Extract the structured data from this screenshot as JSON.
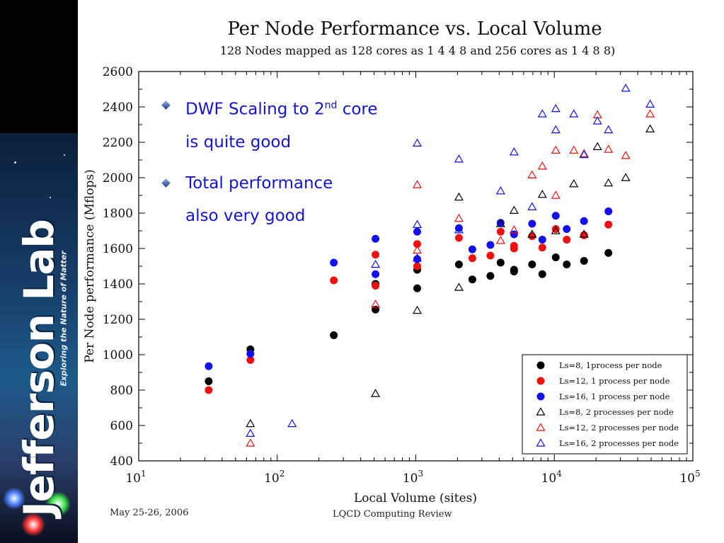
{
  "sidebar": {
    "logo_text": "Jefferson Lab",
    "tagline": "Exploring the Nature of Matter"
  },
  "bullets": [
    {
      "pre": "DWF Scaling to 2",
      "sup": "nd",
      "post": " core",
      "line2": "is quite good"
    },
    {
      "pre": "Total performance",
      "sup": "",
      "post": "",
      "line2": "also very good"
    }
  ],
  "footer": {
    "date": "May 25-26, 2006",
    "center": "LQCD Computing Review"
  },
  "colors": {
    "series_black": "#000000",
    "series_red": "#ee1111",
    "series_blue": "#1111ee",
    "bullet_text": "#1515d0"
  },
  "chart_data": {
    "type": "scatter",
    "title": "Per Node Performance vs. Local Volume",
    "subtitle": "128 Nodes mapped as 128 cores as 1 4 4 8 and 256 cores as 1 4 8 8)",
    "xlabel": "Local Volume (sites)",
    "ylabel": "Per Node performance (Mflops)",
    "xscale": "log",
    "xlim": [
      10,
      100000
    ],
    "ylim": [
      400,
      2600
    ],
    "x_ticks": [
      {
        "value": 10,
        "base": "10",
        "exp": "1"
      },
      {
        "value": 100,
        "base": "10",
        "exp": "2"
      },
      {
        "value": 1000,
        "base": "10",
        "exp": "3"
      },
      {
        "value": 10000,
        "base": "10",
        "exp": "4"
      },
      {
        "value": 100000,
        "base": "10",
        "exp": "5"
      }
    ],
    "y_ticks": [
      "400",
      "600",
      "800",
      "1000",
      "1200",
      "1400",
      "1600",
      "1800",
      "2000",
      "2200",
      "2400",
      "2600"
    ],
    "legend_position": "bottom-right",
    "series": [
      {
        "name": "Ls=8, 1process per node",
        "marker": "circle",
        "color": "#000000",
        "points": [
          [
            32,
            850
          ],
          [
            64,
            1030
          ],
          [
            256,
            1110
          ],
          [
            512,
            1255
          ],
          [
            512,
            1400
          ],
          [
            1024,
            1375
          ],
          [
            1024,
            1480
          ],
          [
            2048,
            1510
          ],
          [
            2560,
            1425
          ],
          [
            3456,
            1445
          ],
          [
            4096,
            1520
          ],
          [
            5120,
            1470
          ],
          [
            5120,
            1480
          ],
          [
            6912,
            1510
          ],
          [
            8192,
            1455
          ],
          [
            10240,
            1550
          ],
          [
            12288,
            1510
          ],
          [
            16384,
            1530
          ],
          [
            24576,
            1575
          ]
        ]
      },
      {
        "name": "Ls=12, 1 process per node",
        "marker": "circle",
        "color": "#ee1111",
        "points": [
          [
            32,
            800
          ],
          [
            64,
            970
          ],
          [
            256,
            1420
          ],
          [
            512,
            1390
          ],
          [
            512,
            1565
          ],
          [
            1024,
            1500
          ],
          [
            1024,
            1625
          ],
          [
            2048,
            1660
          ],
          [
            2560,
            1545
          ],
          [
            3456,
            1560
          ],
          [
            4096,
            1695
          ],
          [
            5120,
            1600
          ],
          [
            5120,
            1615
          ],
          [
            6912,
            1670
          ],
          [
            8192,
            1605
          ],
          [
            10240,
            1710
          ],
          [
            12288,
            1650
          ],
          [
            16384,
            1675
          ],
          [
            24576,
            1735
          ]
        ]
      },
      {
        "name": "Ls=16, 1 process per node",
        "marker": "circle",
        "color": "#1111ee",
        "points": [
          [
            32,
            935
          ],
          [
            64,
            1005
          ],
          [
            256,
            1520
          ],
          [
            512,
            1455
          ],
          [
            512,
            1655
          ],
          [
            1024,
            1540
          ],
          [
            1024,
            1695
          ],
          [
            2048,
            1715
          ],
          [
            2560,
            1595
          ],
          [
            3456,
            1620
          ],
          [
            4096,
            1745
          ],
          [
            5120,
            1680
          ],
          [
            6912,
            1740
          ],
          [
            8192,
            1650
          ],
          [
            10240,
            1785
          ],
          [
            12288,
            1710
          ],
          [
            16384,
            1755
          ],
          [
            24576,
            1810
          ]
        ]
      },
      {
        "name": "Ls=8, 2 processes per node",
        "marker": "triangle",
        "color": "#000000",
        "points": [
          [
            64,
            610
          ],
          [
            512,
            780
          ],
          [
            1024,
            1250
          ],
          [
            2048,
            1380
          ],
          [
            2048,
            1890
          ],
          [
            4096,
            1740
          ],
          [
            5120,
            1815
          ],
          [
            6912,
            1680
          ],
          [
            8192,
            1905
          ],
          [
            10240,
            1700
          ],
          [
            13824,
            1965
          ],
          [
            16384,
            1680
          ],
          [
            20480,
            2175
          ],
          [
            24576,
            1970
          ],
          [
            32768,
            2000
          ],
          [
            49152,
            2275
          ]
        ]
      },
      {
        "name": "Ls=12, 2 processes per node",
        "marker": "triangle",
        "color": "#ee1111",
        "points": [
          [
            64,
            500
          ],
          [
            512,
            1285
          ],
          [
            1024,
            1590
          ],
          [
            1024,
            1960
          ],
          [
            2048,
            1770
          ],
          [
            4096,
            1645
          ],
          [
            5120,
            1705
          ],
          [
            6912,
            2015
          ],
          [
            8192,
            2065
          ],
          [
            10240,
            1900
          ],
          [
            10240,
            2155
          ],
          [
            13824,
            2155
          ],
          [
            16384,
            2135
          ],
          [
            20480,
            2355
          ],
          [
            24576,
            2160
          ],
          [
            32768,
            2125
          ],
          [
            49152,
            2360
          ]
        ]
      },
      {
        "name": "Ls=16, 2 processes per node",
        "marker": "triangle",
        "color": "#1111ee",
        "points": [
          [
            64,
            555
          ],
          [
            128,
            610
          ],
          [
            512,
            1510
          ],
          [
            1024,
            1545
          ],
          [
            1024,
            1735
          ],
          [
            1024,
            2195
          ],
          [
            2048,
            1705
          ],
          [
            2048,
            2105
          ],
          [
            4096,
            1925
          ],
          [
            5120,
            2145
          ],
          [
            6912,
            1835
          ],
          [
            8192,
            2360
          ],
          [
            10240,
            2390
          ],
          [
            10240,
            2270
          ],
          [
            13824,
            2360
          ],
          [
            16384,
            2130
          ],
          [
            20480,
            2320
          ],
          [
            24576,
            2270
          ],
          [
            32768,
            2505
          ],
          [
            49152,
            2415
          ]
        ]
      }
    ]
  }
}
